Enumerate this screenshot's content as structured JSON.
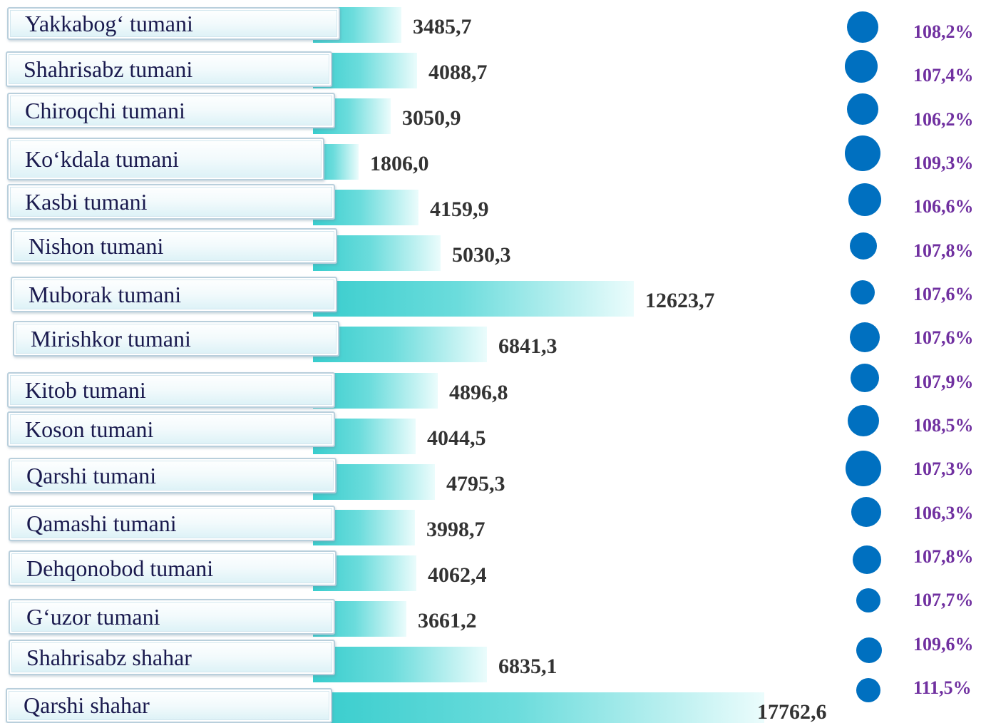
{
  "chart_data": {
    "type": "bar",
    "orientation": "horizontal",
    "title": "",
    "xlabel": "",
    "ylabel": "",
    "grid": false,
    "legend": "none",
    "categories": [
      "Yakkabog‘ tumani",
      "Shahrisabz tumani",
      "Chiroqchi tumani",
      "Ko‘kdala tumani",
      "Kasbi tumani",
      "Nishon tumani",
      "Muborak tumani",
      "Mirishkor tumani",
      "Kitob tumani",
      "Koson tumani",
      "Qarshi tumani",
      "Qamashi tumani",
      "Dehqonobod tumani",
      "G‘uzor tumani",
      "Shahrisabz shahar",
      "Qarshi shahar"
    ],
    "values": [
      3485.7,
      4088.7,
      3050.9,
      1806.0,
      4159.9,
      5030.3,
      12623.7,
      6841.3,
      4896.8,
      4044.5,
      4795.3,
      3998.7,
      4062.4,
      3661.2,
      6835.1,
      17762.6
    ],
    "value_labels": [
      "3485,7",
      "4088,7",
      "3050,9",
      "1806,0",
      "4159,9",
      "5030,3",
      "12623,7",
      "6841,3",
      "4896,8",
      "4044,5",
      "4795,3",
      "3998,7",
      "4062,4",
      "3661,2",
      "6835,1",
      "17762,6"
    ],
    "percent_labels": [
      "108,2%",
      "107,4%",
      "106,2%",
      "109,3%",
      "106,6%",
      "107,8%",
      "107,6%",
      "107,6%",
      "107,9%",
      "108,5%",
      "107,3%",
      "106,3%",
      "107,8%",
      "107,7%",
      "109,6%",
      "111,5%"
    ]
  },
  "colors": {
    "bar_start": "#38cdcd",
    "bar_end": "#ebfcfc",
    "label_text": "#1a1a4e",
    "value_text": "#333333",
    "percent_text": "#7030a0",
    "dot": "#0070c0"
  }
}
